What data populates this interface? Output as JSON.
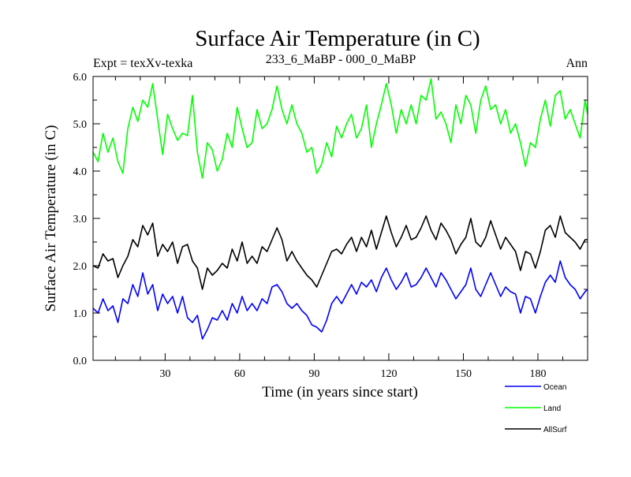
{
  "chart_data": {
    "type": "line",
    "title": "Surface Air Temperature (in C)",
    "subtitle_left": "Expt = texXv-texka",
    "subtitle_center": "233_6_MaBP - 000_0_MaBP",
    "subtitle_right": "Ann",
    "xlabel": "Time (in years since start)",
    "ylabel": "Surface Air Temperature (in C)",
    "xlim": [
      1,
      200
    ],
    "ylim": [
      0,
      6
    ],
    "xticks": [
      30,
      60,
      90,
      120,
      150,
      180
    ],
    "yticks": [
      0,
      1,
      2,
      3,
      4,
      5,
      6
    ],
    "ytick_labels": [
      "0.0",
      "1.0",
      "2.0",
      "3.0",
      "4.0",
      "5.0",
      "6.0"
    ],
    "grid": false,
    "legend_position": "bottom-right",
    "series": [
      {
        "name": "Ocean",
        "color": "#0000ff",
        "keypoints": [
          [
            1,
            1.1
          ],
          [
            3,
            1.0
          ],
          [
            5,
            1.3
          ],
          [
            7,
            1.05
          ],
          [
            9,
            1.15
          ],
          [
            11,
            0.8
          ],
          [
            13,
            1.3
          ],
          [
            15,
            1.2
          ],
          [
            17,
            1.6
          ],
          [
            19,
            1.35
          ],
          [
            21,
            1.85
          ],
          [
            23,
            1.4
          ],
          [
            25,
            1.6
          ],
          [
            27,
            1.05
          ],
          [
            29,
            1.4
          ],
          [
            31,
            1.2
          ],
          [
            33,
            1.35
          ],
          [
            35,
            1.0
          ],
          [
            37,
            1.35
          ],
          [
            39,
            0.9
          ],
          [
            41,
            0.8
          ],
          [
            43,
            0.95
          ],
          [
            45,
            0.45
          ],
          [
            47,
            0.65
          ],
          [
            49,
            0.9
          ],
          [
            51,
            0.85
          ],
          [
            53,
            1.05
          ],
          [
            55,
            0.85
          ],
          [
            57,
            1.2
          ],
          [
            59,
            1.0
          ],
          [
            61,
            1.35
          ],
          [
            63,
            1.05
          ],
          [
            65,
            1.2
          ],
          [
            67,
            1.05
          ],
          [
            69,
            1.3
          ],
          [
            71,
            1.2
          ],
          [
            73,
            1.55
          ],
          [
            75,
            1.6
          ],
          [
            77,
            1.45
          ],
          [
            79,
            1.2
          ],
          [
            81,
            1.1
          ],
          [
            83,
            1.2
          ],
          [
            85,
            1.05
          ],
          [
            87,
            0.95
          ],
          [
            89,
            0.75
          ],
          [
            91,
            0.7
          ],
          [
            93,
            0.6
          ],
          [
            95,
            0.85
          ],
          [
            97,
            1.2
          ],
          [
            99,
            1.35
          ],
          [
            101,
            1.2
          ],
          [
            103,
            1.4
          ],
          [
            105,
            1.6
          ],
          [
            107,
            1.4
          ],
          [
            109,
            1.65
          ],
          [
            111,
            1.55
          ],
          [
            113,
            1.7
          ],
          [
            115,
            1.45
          ],
          [
            117,
            1.75
          ],
          [
            119,
            1.95
          ],
          [
            121,
            1.7
          ],
          [
            123,
            1.5
          ],
          [
            125,
            1.65
          ],
          [
            127,
            1.85
          ],
          [
            129,
            1.55
          ],
          [
            131,
            1.6
          ],
          [
            133,
            1.75
          ],
          [
            135,
            1.95
          ],
          [
            137,
            1.75
          ],
          [
            139,
            1.55
          ],
          [
            141,
            1.85
          ],
          [
            143,
            1.7
          ],
          [
            145,
            1.5
          ],
          [
            147,
            1.3
          ],
          [
            149,
            1.45
          ],
          [
            151,
            1.6
          ],
          [
            153,
            1.95
          ],
          [
            155,
            1.5
          ],
          [
            157,
            1.35
          ],
          [
            159,
            1.6
          ],
          [
            161,
            1.85
          ],
          [
            163,
            1.6
          ],
          [
            165,
            1.35
          ],
          [
            167,
            1.55
          ],
          [
            169,
            1.45
          ],
          [
            171,
            1.4
          ],
          [
            173,
            1.0
          ],
          [
            175,
            1.35
          ],
          [
            177,
            1.3
          ],
          [
            179,
            1.0
          ],
          [
            181,
            1.35
          ],
          [
            183,
            1.65
          ],
          [
            185,
            1.8
          ],
          [
            187,
            1.65
          ],
          [
            189,
            2.1
          ],
          [
            191,
            1.75
          ],
          [
            193,
            1.6
          ],
          [
            195,
            1.5
          ],
          [
            197,
            1.3
          ],
          [
            199,
            1.45
          ],
          [
            200,
            1.5
          ]
        ]
      },
      {
        "name": "Land",
        "color": "#00ff00",
        "keypoints": [
          [
            1,
            4.4
          ],
          [
            3,
            4.2
          ],
          [
            5,
            4.8
          ],
          [
            7,
            4.4
          ],
          [
            9,
            4.7
          ],
          [
            11,
            4.2
          ],
          [
            13,
            3.95
          ],
          [
            15,
            4.9
          ],
          [
            17,
            5.35
          ],
          [
            19,
            5.05
          ],
          [
            21,
            5.5
          ],
          [
            23,
            5.35
          ],
          [
            25,
            5.85
          ],
          [
            27,
            5.1
          ],
          [
            29,
            4.35
          ],
          [
            31,
            5.2
          ],
          [
            33,
            4.9
          ],
          [
            35,
            4.65
          ],
          [
            37,
            4.8
          ],
          [
            39,
            4.75
          ],
          [
            41,
            5.6
          ],
          [
            43,
            4.4
          ],
          [
            45,
            3.85
          ],
          [
            47,
            4.6
          ],
          [
            49,
            4.45
          ],
          [
            51,
            4.0
          ],
          [
            53,
            4.25
          ],
          [
            55,
            4.8
          ],
          [
            57,
            4.5
          ],
          [
            59,
            5.35
          ],
          [
            61,
            4.9
          ],
          [
            63,
            4.5
          ],
          [
            65,
            4.6
          ],
          [
            67,
            5.3
          ],
          [
            69,
            4.9
          ],
          [
            71,
            5.0
          ],
          [
            73,
            5.3
          ],
          [
            75,
            5.8
          ],
          [
            77,
            5.3
          ],
          [
            79,
            5.0
          ],
          [
            81,
            5.4
          ],
          [
            83,
            5.0
          ],
          [
            85,
            4.8
          ],
          [
            87,
            4.4
          ],
          [
            89,
            4.5
          ],
          [
            91,
            3.95
          ],
          [
            93,
            4.15
          ],
          [
            95,
            4.6
          ],
          [
            97,
            4.3
          ],
          [
            99,
            4.95
          ],
          [
            101,
            4.7
          ],
          [
            103,
            5.0
          ],
          [
            105,
            5.2
          ],
          [
            107,
            4.7
          ],
          [
            109,
            4.9
          ],
          [
            111,
            5.4
          ],
          [
            113,
            4.5
          ],
          [
            115,
            5.0
          ],
          [
            117,
            5.4
          ],
          [
            119,
            5.85
          ],
          [
            121,
            5.4
          ],
          [
            123,
            4.8
          ],
          [
            125,
            5.3
          ],
          [
            127,
            5.0
          ],
          [
            129,
            5.4
          ],
          [
            131,
            5.0
          ],
          [
            133,
            5.6
          ],
          [
            135,
            5.5
          ],
          [
            137,
            5.95
          ],
          [
            139,
            5.1
          ],
          [
            141,
            5.25
          ],
          [
            143,
            5.0
          ],
          [
            145,
            4.6
          ],
          [
            147,
            5.4
          ],
          [
            149,
            5.0
          ],
          [
            151,
            5.6
          ],
          [
            153,
            5.4
          ],
          [
            155,
            4.8
          ],
          [
            157,
            5.5
          ],
          [
            159,
            5.8
          ],
          [
            161,
            5.3
          ],
          [
            163,
            5.4
          ],
          [
            165,
            5.0
          ],
          [
            167,
            5.3
          ],
          [
            169,
            4.8
          ],
          [
            171,
            5.0
          ],
          [
            173,
            4.6
          ],
          [
            175,
            4.1
          ],
          [
            177,
            4.6
          ],
          [
            179,
            4.5
          ],
          [
            181,
            5.1
          ],
          [
            183,
            5.5
          ],
          [
            185,
            4.95
          ],
          [
            187,
            5.6
          ],
          [
            189,
            5.7
          ],
          [
            191,
            5.1
          ],
          [
            193,
            5.3
          ],
          [
            195,
            5.0
          ],
          [
            197,
            4.7
          ],
          [
            199,
            5.5
          ],
          [
            200,
            5.2
          ]
        ]
      },
      {
        "name": "AllSurf",
        "color": "#000000",
        "keypoints": [
          [
            1,
            2.0
          ],
          [
            3,
            1.95
          ],
          [
            5,
            2.25
          ],
          [
            7,
            2.1
          ],
          [
            9,
            2.15
          ],
          [
            11,
            1.75
          ],
          [
            13,
            2.0
          ],
          [
            15,
            2.2
          ],
          [
            17,
            2.55
          ],
          [
            19,
            2.4
          ],
          [
            21,
            2.85
          ],
          [
            23,
            2.65
          ],
          [
            25,
            2.9
          ],
          [
            27,
            2.2
          ],
          [
            29,
            2.45
          ],
          [
            31,
            2.3
          ],
          [
            33,
            2.5
          ],
          [
            35,
            2.05
          ],
          [
            37,
            2.4
          ],
          [
            39,
            2.45
          ],
          [
            41,
            2.1
          ],
          [
            43,
            1.95
          ],
          [
            45,
            1.5
          ],
          [
            47,
            1.95
          ],
          [
            49,
            1.8
          ],
          [
            51,
            1.9
          ],
          [
            53,
            2.05
          ],
          [
            55,
            1.95
          ],
          [
            57,
            2.35
          ],
          [
            59,
            2.1
          ],
          [
            61,
            2.5
          ],
          [
            63,
            2.05
          ],
          [
            65,
            2.2
          ],
          [
            67,
            2.05
          ],
          [
            69,
            2.4
          ],
          [
            71,
            2.3
          ],
          [
            73,
            2.55
          ],
          [
            75,
            2.8
          ],
          [
            77,
            2.55
          ],
          [
            79,
            2.1
          ],
          [
            81,
            2.3
          ],
          [
            83,
            2.1
          ],
          [
            85,
            1.95
          ],
          [
            87,
            1.8
          ],
          [
            89,
            1.7
          ],
          [
            91,
            1.55
          ],
          [
            93,
            1.8
          ],
          [
            95,
            2.05
          ],
          [
            97,
            2.3
          ],
          [
            99,
            2.35
          ],
          [
            101,
            2.25
          ],
          [
            103,
            2.45
          ],
          [
            105,
            2.6
          ],
          [
            107,
            2.3
          ],
          [
            109,
            2.6
          ],
          [
            111,
            2.4
          ],
          [
            113,
            2.75
          ],
          [
            115,
            2.35
          ],
          [
            117,
            2.7
          ],
          [
            119,
            3.05
          ],
          [
            121,
            2.7
          ],
          [
            123,
            2.4
          ],
          [
            125,
            2.6
          ],
          [
            127,
            2.85
          ],
          [
            129,
            2.55
          ],
          [
            131,
            2.6
          ],
          [
            133,
            2.8
          ],
          [
            135,
            3.05
          ],
          [
            137,
            2.75
          ],
          [
            139,
            2.55
          ],
          [
            141,
            2.9
          ],
          [
            143,
            2.75
          ],
          [
            145,
            2.55
          ],
          [
            147,
            2.25
          ],
          [
            149,
            2.45
          ],
          [
            151,
            2.6
          ],
          [
            153,
            3.0
          ],
          [
            155,
            2.5
          ],
          [
            157,
            2.4
          ],
          [
            159,
            2.6
          ],
          [
            161,
            2.95
          ],
          [
            163,
            2.65
          ],
          [
            165,
            2.35
          ],
          [
            167,
            2.6
          ],
          [
            169,
            2.45
          ],
          [
            171,
            2.3
          ],
          [
            173,
            1.9
          ],
          [
            175,
            2.3
          ],
          [
            177,
            2.25
          ],
          [
            179,
            1.95
          ],
          [
            181,
            2.3
          ],
          [
            183,
            2.75
          ],
          [
            185,
            2.85
          ],
          [
            187,
            2.6
          ],
          [
            189,
            3.05
          ],
          [
            191,
            2.7
          ],
          [
            193,
            2.6
          ],
          [
            195,
            2.5
          ],
          [
            197,
            2.35
          ],
          [
            199,
            2.55
          ],
          [
            200,
            2.55
          ]
        ]
      }
    ]
  }
}
